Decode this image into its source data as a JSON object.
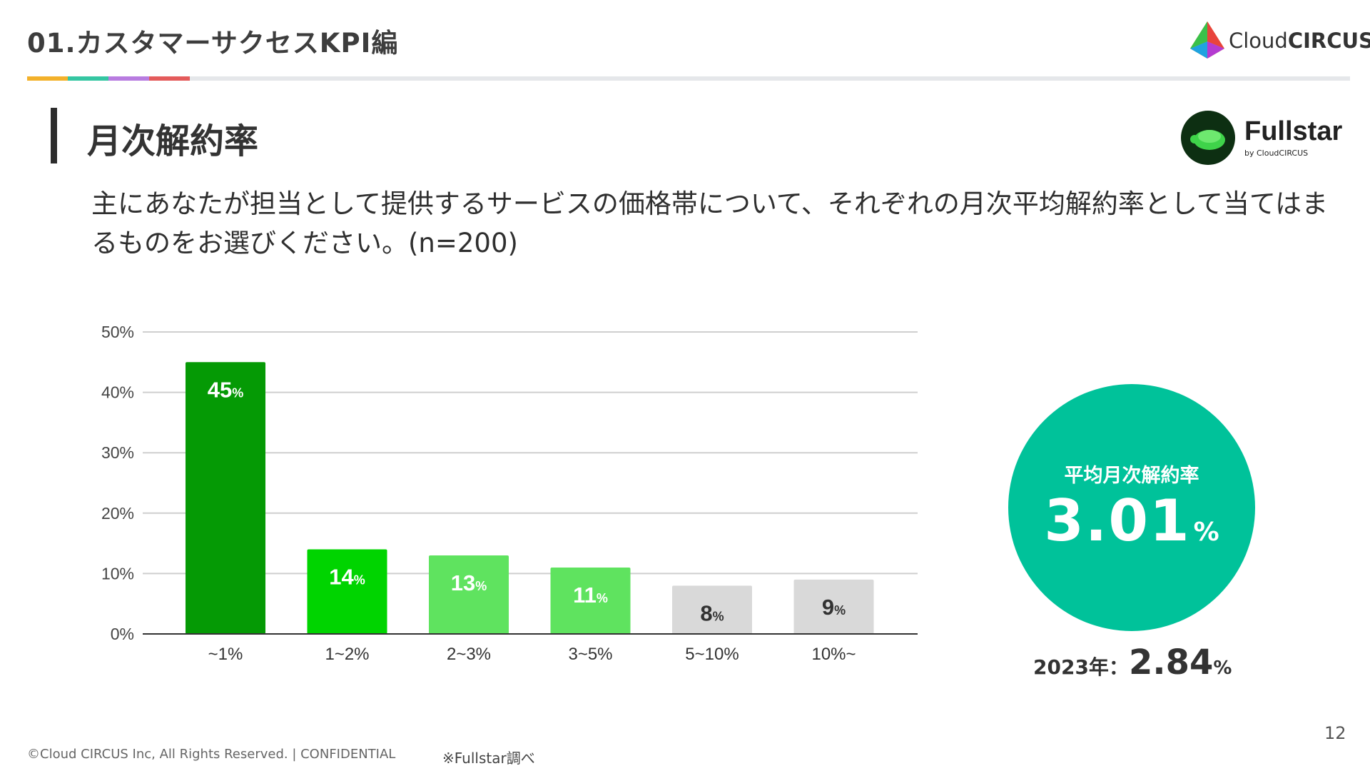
{
  "header": {
    "section_title": "01.カスタマーサクセスKPI編",
    "brand": {
      "light": "Cloud",
      "bold": "CIRCUS"
    },
    "rule_colors": [
      "#f3b12a",
      "#35c6a2",
      "#b87ce0",
      "#e45b5b"
    ]
  },
  "page": {
    "heading": "月次解約率",
    "fullstar": {
      "name": "Fullstar",
      "sub": "by CloudCIRCUS"
    },
    "question": "主にあなたが担当として提供するサービスの価格帯について、それぞれの月次平均解約率として当てはまるものをお選びください。(n=200)"
  },
  "chart_data": {
    "type": "bar",
    "categories": [
      "~1%",
      "1~2%",
      "2~3%",
      "3~5%",
      "5~10%",
      "10%~"
    ],
    "values": [
      45,
      14,
      13,
      11,
      8,
      9
    ],
    "unit": "%",
    "value_labels": [
      "45",
      "14",
      "13",
      "11",
      "8",
      "9"
    ],
    "bar_colors": [
      "#059a05",
      "#00d400",
      "#5fe35f",
      "#5fe35f",
      "#d9d9d9",
      "#d9d9d9"
    ],
    "label_colors": [
      "#ffffff",
      "#ffffff",
      "#ffffff",
      "#ffffff",
      "#333333",
      "#333333"
    ],
    "ylim": [
      0,
      50
    ],
    "yticks": [
      0,
      10,
      20,
      30,
      40,
      50
    ],
    "ytick_labels": [
      "0%",
      "10%",
      "20%",
      "30%",
      "40%",
      "50%"
    ],
    "grid": true,
    "title": "",
    "xlabel": "",
    "ylabel": ""
  },
  "kpi": {
    "label": "平均月次解約率",
    "value": "3.01",
    "unit": "%",
    "color": "#00c29a",
    "previous_label": "2023年：",
    "previous_value": "2.84",
    "previous_unit": "%"
  },
  "footer": {
    "copyright": "©Cloud CIRCUS Inc, All Rights Reserved. | CONFIDENTIAL",
    "source": "※Fullstar調べ",
    "page_number": "12"
  }
}
